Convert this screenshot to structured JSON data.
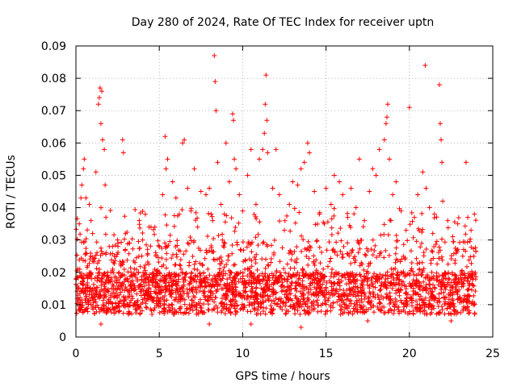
{
  "chart_data": {
    "type": "scatter",
    "title": "Day 280 of 2024, Rate Of TEC Index for receiver uptn",
    "xlabel": "GPS time / hours",
    "ylabel": "ROTI / TECUs",
    "xlim": [
      0,
      25
    ],
    "ylim": [
      0,
      0.09
    ],
    "x_ticks": [
      0,
      5,
      10,
      15,
      20,
      25
    ],
    "y_ticks": [
      0,
      0.01,
      0.02,
      0.03,
      0.04,
      0.05,
      0.06,
      0.07,
      0.08,
      0.09
    ],
    "x_tick_labels": [
      "0",
      "5",
      "10",
      "15",
      "20",
      "25"
    ],
    "y_tick_labels": [
      "0",
      "0.01",
      "0.02",
      "0.03",
      "0.04",
      "0.05",
      "0.06",
      "0.07",
      "0.08",
      "0.09"
    ],
    "grid": true,
    "marker": "+",
    "series": [
      {
        "name": "ROTI",
        "color": "#ff0000",
        "points": [
          [
            0.1,
            0.012
          ],
          [
            0.2,
            0.035
          ],
          [
            0.3,
            0.043
          ],
          [
            0.35,
            0.047
          ],
          [
            0.45,
            0.052
          ],
          [
            0.5,
            0.055
          ],
          [
            0.6,
            0.043
          ],
          [
            0.8,
            0.041
          ],
          [
            0.9,
            0.036
          ],
          [
            1.0,
            0.032
          ],
          [
            1.2,
            0.051
          ],
          [
            1.35,
            0.072
          ],
          [
            1.4,
            0.074
          ],
          [
            1.45,
            0.077
          ],
          [
            1.5,
            0.066
          ],
          [
            1.55,
            0.076
          ],
          [
            1.6,
            0.061
          ],
          [
            1.7,
            0.058
          ],
          [
            1.75,
            0.047
          ],
          [
            1.8,
            0.037
          ],
          [
            2.0,
            0.028
          ],
          [
            2.3,
            0.025
          ],
          [
            2.5,
            0.03
          ],
          [
            2.7,
            0.022
          ],
          [
            2.8,
            0.061
          ],
          [
            2.85,
            0.057
          ],
          [
            3.0,
            0.018
          ],
          [
            3.2,
            0.029
          ],
          [
            3.5,
            0.021
          ],
          [
            3.8,
            0.036
          ],
          [
            4.0,
            0.03
          ],
          [
            4.2,
            0.018
          ],
          [
            4.5,
            0.034
          ],
          [
            4.8,
            0.025
          ],
          [
            5.0,
            0.028
          ],
          [
            5.2,
            0.044
          ],
          [
            5.35,
            0.062
          ],
          [
            5.4,
            0.052
          ],
          [
            5.5,
            0.055
          ],
          [
            5.8,
            0.048
          ],
          [
            6.0,
            0.043
          ],
          [
            6.2,
            0.038
          ],
          [
            6.4,
            0.06
          ],
          [
            6.5,
            0.061
          ],
          [
            6.7,
            0.046
          ],
          [
            6.9,
            0.039
          ],
          [
            7.1,
            0.052
          ],
          [
            7.3,
            0.034
          ],
          [
            7.5,
            0.045
          ],
          [
            7.8,
            0.044
          ],
          [
            8.0,
            0.046
          ],
          [
            8.2,
            0.036
          ],
          [
            8.3,
            0.087
          ],
          [
            8.35,
            0.079
          ],
          [
            8.4,
            0.07
          ],
          [
            8.5,
            0.054
          ],
          [
            8.7,
            0.041
          ],
          [
            8.9,
            0.038
          ],
          [
            9.0,
            0.06
          ],
          [
            9.2,
            0.048
          ],
          [
            9.4,
            0.069
          ],
          [
            9.45,
            0.067
          ],
          [
            9.5,
            0.055
          ],
          [
            9.6,
            0.052
          ],
          [
            9.8,
            0.044
          ],
          [
            10.0,
            0.039
          ],
          [
            10.3,
            0.05
          ],
          [
            10.5,
            0.058
          ],
          [
            10.8,
            0.041
          ],
          [
            11.0,
            0.055
          ],
          [
            11.2,
            0.058
          ],
          [
            11.3,
            0.063
          ],
          [
            11.35,
            0.072
          ],
          [
            11.4,
            0.081
          ],
          [
            11.45,
            0.067
          ],
          [
            11.5,
            0.057
          ],
          [
            11.8,
            0.046
          ],
          [
            12.0,
            0.058
          ],
          [
            12.2,
            0.044
          ],
          [
            12.5,
            0.033
          ],
          [
            12.8,
            0.041
          ],
          [
            13.0,
            0.048
          ],
          [
            13.3,
            0.047
          ],
          [
            13.5,
            0.052
          ],
          [
            13.7,
            0.054
          ],
          [
            13.9,
            0.06
          ],
          [
            14.0,
            0.057
          ],
          [
            14.3,
            0.045
          ],
          [
            14.6,
            0.038
          ],
          [
            14.9,
            0.035
          ],
          [
            15.0,
            0.046
          ],
          [
            15.3,
            0.041
          ],
          [
            15.5,
            0.05
          ],
          [
            15.8,
            0.048
          ],
          [
            16.0,
            0.044
          ],
          [
            16.3,
            0.037
          ],
          [
            16.5,
            0.046
          ],
          [
            16.8,
            0.04
          ],
          [
            17.0,
            0.055
          ],
          [
            17.3,
            0.036
          ],
          [
            17.6,
            0.045
          ],
          [
            17.8,
            0.052
          ],
          [
            18.0,
            0.05
          ],
          [
            18.2,
            0.058
          ],
          [
            18.5,
            0.061
          ],
          [
            18.6,
            0.066
          ],
          [
            18.65,
            0.068
          ],
          [
            18.7,
            0.072
          ],
          [
            18.8,
            0.055
          ],
          [
            19.0,
            0.044
          ],
          [
            19.2,
            0.048
          ],
          [
            19.5,
            0.039
          ],
          [
            19.8,
            0.033
          ],
          [
            20.0,
            0.071
          ],
          [
            20.3,
            0.037
          ],
          [
            20.5,
            0.044
          ],
          [
            20.8,
            0.051
          ],
          [
            20.95,
            0.084
          ],
          [
            21.0,
            0.046
          ],
          [
            21.2,
            0.04
          ],
          [
            21.5,
            0.038
          ],
          [
            21.8,
            0.078
          ],
          [
            21.85,
            0.066
          ],
          [
            21.9,
            0.061
          ],
          [
            21.95,
            0.054
          ],
          [
            22.0,
            0.042
          ],
          [
            22.3,
            0.036
          ],
          [
            22.6,
            0.031
          ],
          [
            22.9,
            0.035
          ],
          [
            23.2,
            0.025
          ],
          [
            23.4,
            0.054
          ],
          [
            23.5,
            0.037
          ],
          [
            23.7,
            0.033
          ],
          [
            23.9,
            0.038
          ],
          [
            13.5,
            0.003
          ],
          [
            1.5,
            0.004
          ],
          [
            8.0,
            0.004
          ],
          [
            17.5,
            0.005
          ],
          [
            22.5,
            0.005
          ],
          [
            10.5,
            0.004
          ],
          [
            0.0,
            0.018
          ],
          [
            0.7,
            0.022
          ],
          [
            1.1,
            0.015
          ],
          [
            1.9,
            0.02
          ],
          [
            2.6,
            0.013
          ],
          [
            3.3,
            0.017
          ],
          [
            4.1,
            0.012
          ],
          [
            4.9,
            0.019
          ],
          [
            5.6,
            0.016
          ],
          [
            6.3,
            0.021
          ],
          [
            7.0,
            0.014
          ],
          [
            7.7,
            0.018
          ],
          [
            8.6,
            0.02
          ],
          [
            9.3,
            0.015
          ],
          [
            10.1,
            0.017
          ],
          [
            10.9,
            0.013
          ],
          [
            11.6,
            0.019
          ],
          [
            12.4,
            0.016
          ],
          [
            13.2,
            0.012
          ],
          [
            14.1,
            0.018
          ],
          [
            14.8,
            0.014
          ],
          [
            15.6,
            0.02
          ],
          [
            16.4,
            0.015
          ],
          [
            17.2,
            0.017
          ],
          [
            18.1,
            0.013
          ],
          [
            18.9,
            0.019
          ],
          [
            19.7,
            0.016
          ],
          [
            20.6,
            0.021
          ],
          [
            21.4,
            0.014
          ],
          [
            22.2,
            0.018
          ],
          [
            23.0,
            0.012
          ],
          [
            23.8,
            0.016
          ]
        ],
        "density_note": "dense band of points between about 0.005 and 0.03 across the whole day"
      }
    ]
  }
}
